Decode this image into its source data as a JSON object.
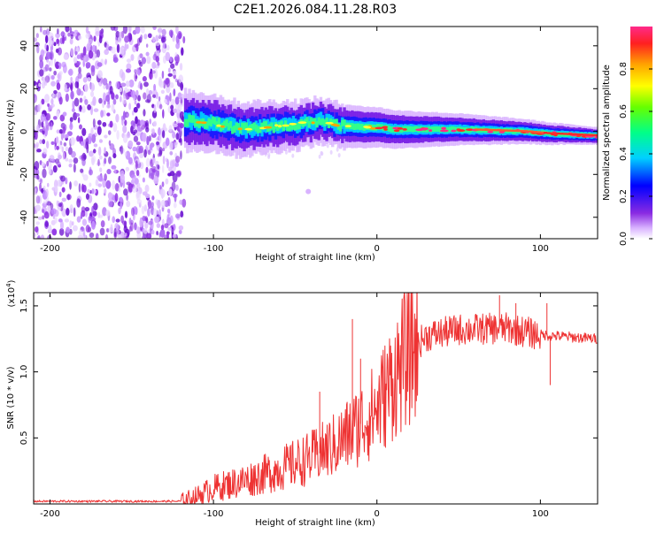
{
  "title": "C2E1.2026.084.11.28.R03",
  "chart_data": [
    {
      "type": "heatmap",
      "name": "spectrogram",
      "xlabel": "Height of straight line (km)",
      "ylabel": "Frequency (Hz)",
      "xlim": [
        -210,
        135
      ],
      "ylim": [
        -50,
        49
      ],
      "xticks": [
        -200,
        -100,
        0,
        100
      ],
      "yticks": [
        -40,
        -20,
        0,
        20,
        40
      ],
      "grid": false,
      "ridge": [
        {
          "x": -115,
          "y": 5
        },
        {
          "x": -100,
          "y": 4
        },
        {
          "x": -85,
          "y": 1
        },
        {
          "x": -70,
          "y": 2
        },
        {
          "x": -50,
          "y": 3
        },
        {
          "x": -35,
          "y": 5
        },
        {
          "x": -25,
          "y": 3
        },
        {
          "x": -10,
          "y": 2
        },
        {
          "x": 0,
          "y": 2
        },
        {
          "x": 10,
          "y": 1
        },
        {
          "x": 50,
          "y": 1
        },
        {
          "x": 90,
          "y": 0
        },
        {
          "x": 105,
          "y": -1
        },
        {
          "x": 135,
          "y": -2
        }
      ],
      "noise_region_x": [
        -210,
        -118
      ],
      "colorbar": {
        "label": "Normalized spectral amplitude",
        "ticks": [
          0.0,
          0.2,
          0.4,
          0.6,
          0.8
        ],
        "range": [
          0.0,
          1.0
        ]
      }
    },
    {
      "type": "line",
      "name": "snr",
      "xlabel": "Height of straight line (km)",
      "ylabel": "SNR (10 * v/v)",
      "y_multiplier": "(x10",
      "y_multiplier_exp": "4",
      "y_multiplier_close": ")",
      "xlim": [
        -210,
        135
      ],
      "ylim": [
        0,
        1.6
      ],
      "xticks": [
        -200,
        -100,
        0,
        100
      ],
      "yticks": [
        0.5,
        1.0,
        1.5
      ],
      "color": "#ee3333",
      "grid": false,
      "envelope": [
        {
          "x": -210,
          "y": 0.02
        },
        {
          "x": -120,
          "y": 0.02
        },
        {
          "x": -110,
          "y": 0.06
        },
        {
          "x": -100,
          "y": 0.12
        },
        {
          "x": -80,
          "y": 0.18
        },
        {
          "x": -60,
          "y": 0.26
        },
        {
          "x": -40,
          "y": 0.35
        },
        {
          "x": -25,
          "y": 0.45
        },
        {
          "x": -15,
          "y": 0.55
        },
        {
          "x": 0,
          "y": 0.72
        },
        {
          "x": 10,
          "y": 0.95
        },
        {
          "x": 20,
          "y": 1.15
        },
        {
          "x": 30,
          "y": 1.27
        },
        {
          "x": 50,
          "y": 1.32
        },
        {
          "x": 80,
          "y": 1.33
        },
        {
          "x": 100,
          "y": 1.28
        },
        {
          "x": 135,
          "y": 1.25
        }
      ],
      "spikes": [
        {
          "x": -15,
          "y": 1.4
        },
        {
          "x": -35,
          "y": 0.85
        },
        {
          "x": -10,
          "y": 1.1
        },
        {
          "x": 75,
          "y": 1.58
        },
        {
          "x": 85,
          "y": 1.52
        },
        {
          "x": 104,
          "y": 1.52
        },
        {
          "x": 106,
          "y": 0.9
        }
      ]
    }
  ]
}
